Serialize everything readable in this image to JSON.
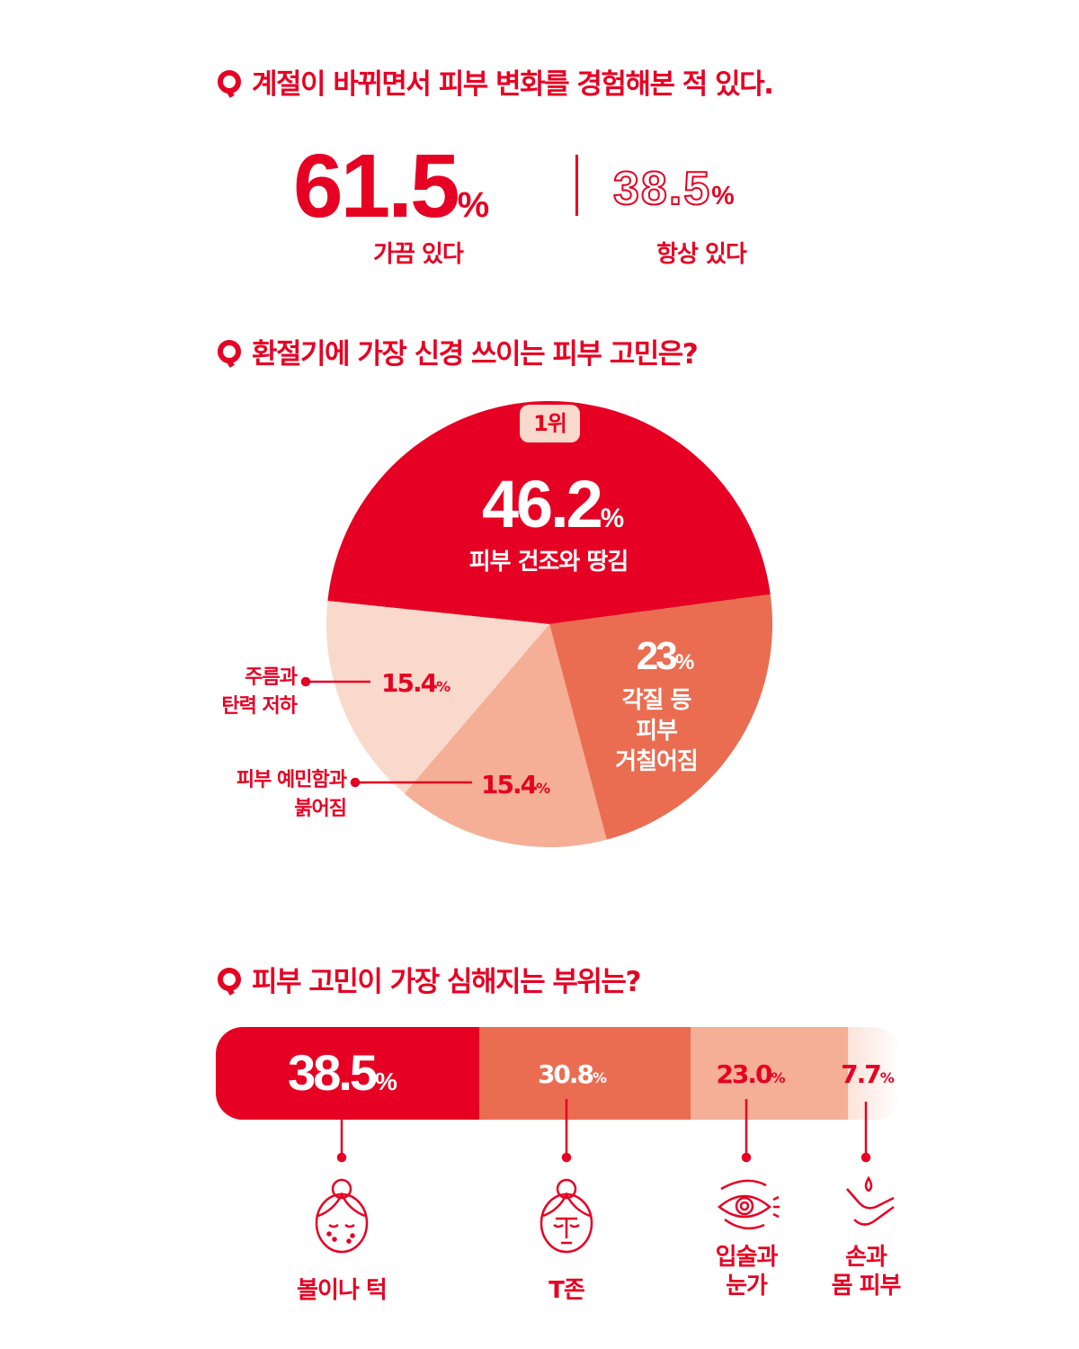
{
  "colors": {
    "red": "#e60023",
    "orange": "#ea6d52",
    "salmon": "#f4af96",
    "pale": "#f9d9cc"
  },
  "q1": {
    "question": "계절이 바뀌면서 피부 변화를 경험해본 적 있다.",
    "a": {
      "value": "61.5",
      "unit": "%",
      "label": "가끔 있다"
    },
    "b": {
      "value": "38.5",
      "unit": "%",
      "label": "항상 있다"
    }
  },
  "q2": {
    "question": "환절기에 가장 신경 쓰이는 피부 고민은?",
    "rank_badge": "1위",
    "slices": [
      {
        "value": "46.2",
        "unit": "%",
        "label": "피부 건조와 땅김"
      },
      {
        "value": "23",
        "unit": "%",
        "label_lines": [
          "각질 등",
          "피부",
          "거칠어짐"
        ]
      },
      {
        "value": "15.4",
        "unit": "%",
        "label_lines": [
          "피부 예민함과",
          "붉어짐"
        ]
      },
      {
        "value": "15.4",
        "unit": "%",
        "label_lines": [
          "주름과",
          "탄력 저하"
        ]
      }
    ]
  },
  "q3": {
    "question": "피부 고민이 가장 심해지는 부위는?",
    "segments": [
      {
        "value": "38.5",
        "unit": "%",
        "label": "볼이나 턱",
        "icon": "face-blemish-icon"
      },
      {
        "value": "30.8",
        "unit": "%",
        "label": "T존",
        "icon": "face-tzone-icon"
      },
      {
        "value": "23.0",
        "unit": "%",
        "label_lines": [
          "입술과",
          "눈가"
        ],
        "icon": "eye-icon"
      },
      {
        "value": "7.7",
        "unit": "%",
        "label_lines": [
          "손과",
          "몸 피부"
        ],
        "icon": "hand-drop-icon"
      }
    ]
  },
  "chart_data": [
    {
      "type": "table",
      "title": "계절이 바뀌면서 피부 변화를 경험해본 적 있다.",
      "categories": [
        "가끔 있다",
        "항상 있다"
      ],
      "values": [
        61.5,
        38.5
      ]
    },
    {
      "type": "pie",
      "title": "환절기에 가장 신경 쓰이는 피부 고민은?",
      "categories": [
        "피부 건조와 땅김",
        "각질 등 피부 거칠어짐",
        "피부 예민함과 붉어짐",
        "주름과 탄력 저하"
      ],
      "values": [
        46.2,
        23,
        15.4,
        15.4
      ],
      "colors": [
        "#e60023",
        "#ea6d52",
        "#f4af96",
        "#f9d9cc"
      ]
    },
    {
      "type": "bar",
      "orientation": "horizontal-stacked",
      "title": "피부 고민이 가장 심해지는 부위는?",
      "categories": [
        "볼이나 턱",
        "T존",
        "입술과 눈가",
        "손과 몸 피부"
      ],
      "values": [
        38.5,
        30.8,
        23.0,
        7.7
      ],
      "colors": [
        "#e60023",
        "#ea6d52",
        "#f4af96",
        "#fbe3d9"
      ]
    }
  ]
}
